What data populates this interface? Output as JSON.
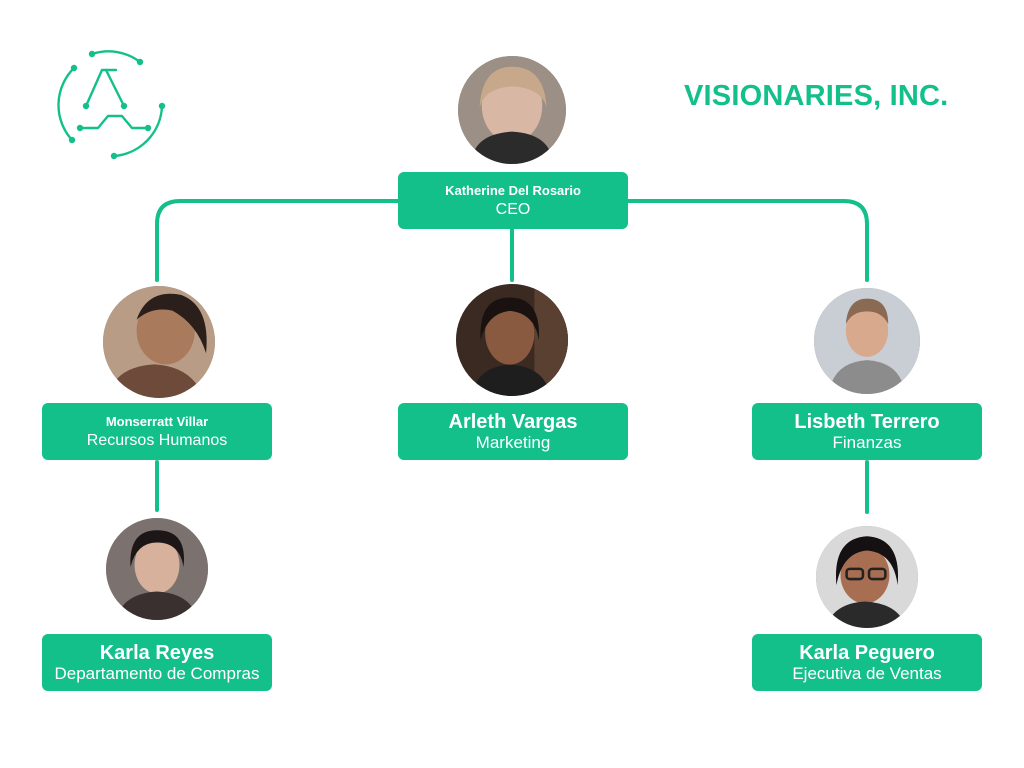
{
  "company": {
    "title": "VISIONARIES, INC.",
    "logo_icon": "a-letter-circuit-logo",
    "accent_color": "#13c08a"
  },
  "org": {
    "ceo": {
      "name": "Katherine Del Rosario",
      "role": "CEO",
      "photo": "profile-photo"
    },
    "rrhh": {
      "name": "Monserratt Villar",
      "role": "Recursos Humanos",
      "photo": "profile-photo"
    },
    "marketing": {
      "name": "Arleth Vargas",
      "role": "Marketing",
      "photo": "profile-photo"
    },
    "finanzas": {
      "name": "Lisbeth Terrero",
      "role": "Finanzas",
      "photo": "profile-photo"
    },
    "compras": {
      "name": "Karla Reyes",
      "role": "Departamento de Compras",
      "photo": "profile-photo"
    },
    "ventas": {
      "name": "Karla Peguero",
      "role": "Ejecutiva de Ventas",
      "photo": "profile-photo"
    }
  }
}
